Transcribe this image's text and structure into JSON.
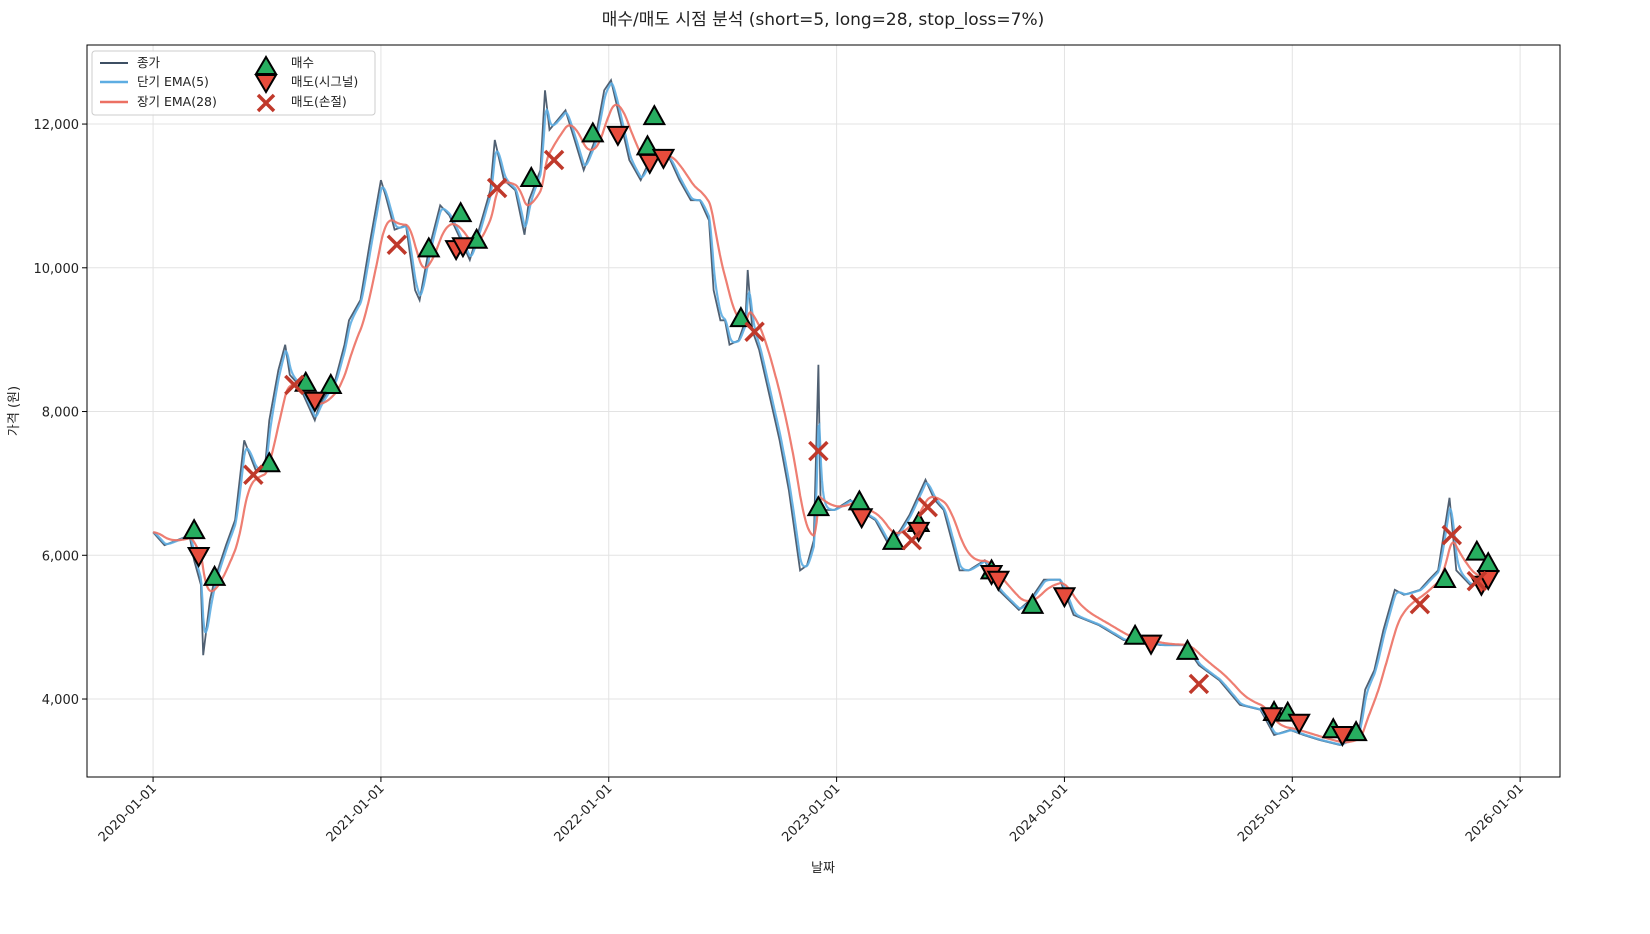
{
  "chart_data": {
    "type": "line",
    "title": "매수/매도 시점 분석 (short=5, long=28, stop_loss=7%)",
    "xlabel": "날짜",
    "ylabel": "가격 (원)",
    "xlim": [
      2019.71,
      2026.175
    ],
    "ylim": [
      2915,
      13100
    ],
    "grid": true,
    "legend_position": "top-left",
    "x_ticks": [
      {
        "t": 2020,
        "label": "2020-01-01"
      },
      {
        "t": 2021,
        "label": "2021-01-01"
      },
      {
        "t": 2022,
        "label": "2022-01-01"
      },
      {
        "t": 2023,
        "label": "2023-01-01"
      },
      {
        "t": 2024,
        "label": "2024-01-01"
      },
      {
        "t": 2025,
        "label": "2025-01-01"
      },
      {
        "t": 2026,
        "label": "2026-01-01"
      }
    ],
    "y_ticks": [
      {
        "v": 4000,
        "label": "4,000"
      },
      {
        "v": 6000,
        "label": "6,000"
      },
      {
        "v": 8000,
        "label": "8,000"
      },
      {
        "v": 10000,
        "label": "10,000"
      },
      {
        "v": 12000,
        "label": "12,000"
      }
    ],
    "legend": {
      "close": "종가",
      "ema_short": "단기 EMA(5)",
      "ema_long": "장기 EMA(28)",
      "buy": "매수",
      "sell_signal": "매도(시그널)",
      "sell_stop": "매도(손절)"
    },
    "colors": {
      "close": "#3d4f63",
      "ema_short": "#5dade2",
      "ema_long": "#ec7063",
      "buy": "#27ae60",
      "sell_signal": "#e74c3c",
      "sell_stop": "#c0392b"
    },
    "ema_spans": {
      "short": 5,
      "long": 28
    },
    "close": [
      [
        2020.0,
        6320
      ],
      [
        2020.05,
        6140
      ],
      [
        2020.16,
        6280
      ],
      [
        2020.18,
        5930
      ],
      [
        2020.21,
        5590
      ],
      [
        2020.22,
        4610
      ],
      [
        2020.25,
        5380
      ],
      [
        2020.27,
        5660
      ],
      [
        2020.32,
        6140
      ],
      [
        2020.36,
        6490
      ],
      [
        2020.4,
        7600
      ],
      [
        2020.45,
        7190
      ],
      [
        2020.49,
        7190
      ],
      [
        2020.51,
        7880
      ],
      [
        2020.55,
        8580
      ],
      [
        2020.58,
        8930
      ],
      [
        2020.6,
        8510
      ],
      [
        2020.64,
        8370
      ],
      [
        2020.71,
        7880
      ],
      [
        2020.73,
        8090
      ],
      [
        2020.8,
        8440
      ],
      [
        2020.84,
        8930
      ],
      [
        2020.86,
        9270
      ],
      [
        2020.91,
        9550
      ],
      [
        2020.95,
        10320
      ],
      [
        2021.0,
        11220
      ],
      [
        2021.02,
        11010
      ],
      [
        2021.06,
        10530
      ],
      [
        2021.11,
        10590
      ],
      [
        2021.15,
        9690
      ],
      [
        2021.17,
        9550
      ],
      [
        2021.21,
        10250
      ],
      [
        2021.26,
        10870
      ],
      [
        2021.3,
        10730
      ],
      [
        2021.35,
        10390
      ],
      [
        2021.39,
        10110
      ],
      [
        2021.43,
        10530
      ],
      [
        2021.48,
        11080
      ],
      [
        2021.5,
        11780
      ],
      [
        2021.54,
        11220
      ],
      [
        2021.59,
        11080
      ],
      [
        2021.63,
        10460
      ],
      [
        2021.65,
        10940
      ],
      [
        2021.7,
        11360
      ],
      [
        2021.72,
        12470
      ],
      [
        2021.74,
        11920
      ],
      [
        2021.81,
        12190
      ],
      [
        2021.85,
        11780
      ],
      [
        2021.89,
        11360
      ],
      [
        2021.94,
        11780
      ],
      [
        2021.98,
        12470
      ],
      [
        2022.01,
        12610
      ],
      [
        2022.05,
        12060
      ],
      [
        2022.09,
        11500
      ],
      [
        2022.14,
        11220
      ],
      [
        2022.18,
        11500
      ],
      [
        2022.22,
        11640
      ],
      [
        2022.27,
        11500
      ],
      [
        2022.31,
        11220
      ],
      [
        2022.36,
        10940
      ],
      [
        2022.4,
        10940
      ],
      [
        2022.44,
        10660
      ],
      [
        2022.46,
        9690
      ],
      [
        2022.49,
        9270
      ],
      [
        2022.51,
        9270
      ],
      [
        2022.53,
        8930
      ],
      [
        2022.57,
        8990
      ],
      [
        2022.6,
        9270
      ],
      [
        2022.61,
        9970
      ],
      [
        2022.63,
        9130
      ],
      [
        2022.66,
        8860
      ],
      [
        2022.71,
        8160
      ],
      [
        2022.75,
        7600
      ],
      [
        2022.79,
        6910
      ],
      [
        2022.84,
        5790
      ],
      [
        2022.87,
        5860
      ],
      [
        2022.9,
        6210
      ],
      [
        2022.92,
        8650
      ],
      [
        2022.93,
        6630
      ],
      [
        2022.99,
        6630
      ],
      [
        2023.06,
        6770
      ],
      [
        2023.1,
        6630
      ],
      [
        2023.17,
        6490
      ],
      [
        2023.23,
        6140
      ],
      [
        2023.28,
        6350
      ],
      [
        2023.32,
        6560
      ],
      [
        2023.39,
        7050
      ],
      [
        2023.43,
        6770
      ],
      [
        2023.47,
        6630
      ],
      [
        2023.54,
        5790
      ],
      [
        2023.58,
        5790
      ],
      [
        2023.65,
        5930
      ],
      [
        2023.71,
        5520
      ],
      [
        2023.8,
        5240
      ],
      [
        2023.85,
        5380
      ],
      [
        2023.91,
        5660
      ],
      [
        2023.98,
        5660
      ],
      [
        2024.04,
        5170
      ],
      [
        2024.15,
        5030
      ],
      [
        2024.26,
        4820
      ],
      [
        2024.33,
        4820
      ],
      [
        2024.42,
        4750
      ],
      [
        2024.53,
        4750
      ],
      [
        2024.59,
        4470
      ],
      [
        2024.68,
        4260
      ],
      [
        2024.77,
        3920
      ],
      [
        2024.86,
        3850
      ],
      [
        2024.92,
        3500
      ],
      [
        2024.99,
        3570
      ],
      [
        2025.05,
        3500
      ],
      [
        2025.12,
        3430
      ],
      [
        2025.21,
        3360
      ],
      [
        2025.29,
        3500
      ],
      [
        2025.32,
        4130
      ],
      [
        2025.36,
        4400
      ],
      [
        2025.4,
        4960
      ],
      [
        2025.45,
        5520
      ],
      [
        2025.49,
        5450
      ],
      [
        2025.56,
        5520
      ],
      [
        2025.6,
        5660
      ],
      [
        2025.64,
        5790
      ],
      [
        2025.69,
        6800
      ],
      [
        2025.72,
        5790
      ],
      [
        2025.78,
        5590
      ],
      [
        2025.86,
        5660
      ]
    ],
    "buy": [
      [
        2020.18,
        6350
      ],
      [
        2020.27,
        5700
      ],
      [
        2020.51,
        7280
      ],
      [
        2020.67,
        8400
      ],
      [
        2020.78,
        8370
      ],
      [
        2021.21,
        10270
      ],
      [
        2021.35,
        10760
      ],
      [
        2021.42,
        10390
      ],
      [
        2021.66,
        11250
      ],
      [
        2021.93,
        11870
      ],
      [
        2022.17,
        11690
      ],
      [
        2022.2,
        12110
      ],
      [
        2022.58,
        9300
      ],
      [
        2022.92,
        6670
      ],
      [
        2023.1,
        6750
      ],
      [
        2023.25,
        6200
      ],
      [
        2023.36,
        6450
      ],
      [
        2023.68,
        5790
      ],
      [
        2023.86,
        5310
      ],
      [
        2024.31,
        4880
      ],
      [
        2024.54,
        4670
      ],
      [
        2024.92,
        3820
      ],
      [
        2024.98,
        3810
      ],
      [
        2025.18,
        3580
      ],
      [
        2025.28,
        3540
      ],
      [
        2025.67,
        5670
      ],
      [
        2025.81,
        6050
      ],
      [
        2025.86,
        5890
      ]
    ],
    "sell_signal": [
      [
        2020.2,
        5990
      ],
      [
        2020.71,
        8150
      ],
      [
        2021.33,
        10260
      ],
      [
        2021.36,
        10300
      ],
      [
        2022.04,
        11850
      ],
      [
        2022.18,
        11460
      ],
      [
        2022.24,
        11530
      ],
      [
        2023.11,
        6530
      ],
      [
        2023.36,
        6340
      ],
      [
        2023.68,
        5740
      ],
      [
        2023.71,
        5660
      ],
      [
        2024.0,
        5430
      ],
      [
        2024.38,
        4770
      ],
      [
        2024.91,
        3760
      ],
      [
        2025.03,
        3670
      ],
      [
        2025.22,
        3500
      ],
      [
        2025.83,
        5590
      ],
      [
        2025.86,
        5670
      ]
    ],
    "sell_stop": [
      [
        2020.44,
        7120
      ],
      [
        2020.62,
        8370
      ],
      [
        2021.07,
        10320
      ],
      [
        2021.51,
        11110
      ],
      [
        2021.76,
        11500
      ],
      [
        2022.64,
        9110
      ],
      [
        2022.92,
        7450
      ],
      [
        2023.33,
        6210
      ],
      [
        2023.4,
        6670
      ],
      [
        2024.59,
        4210
      ],
      [
        2025.56,
        5320
      ],
      [
        2025.7,
        6280
      ],
      [
        2025.81,
        5640
      ]
    ]
  }
}
